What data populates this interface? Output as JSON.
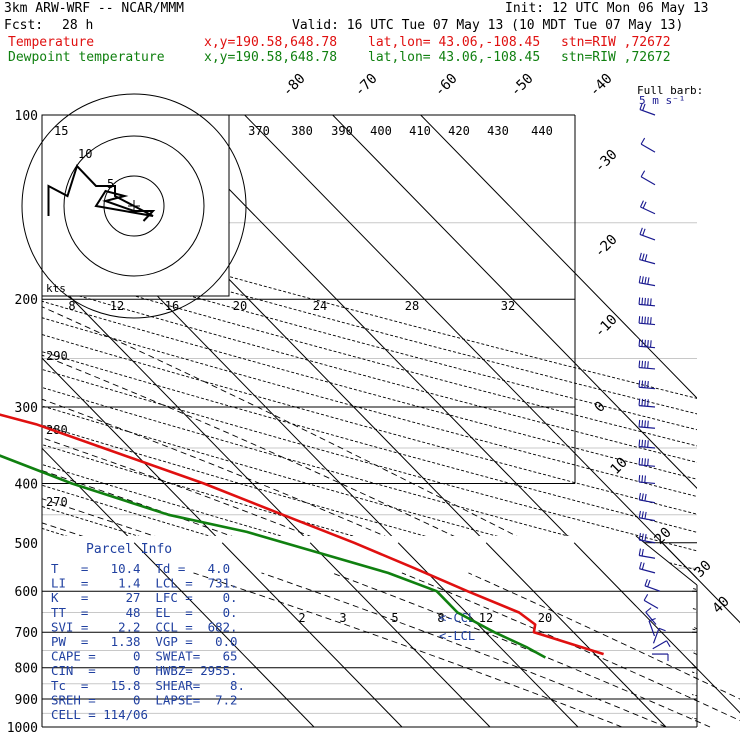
{
  "header": {
    "model": "3km ARW-WRF -- NCAR/MMM",
    "init": "Init: 12 UTC Mon 06 May 13",
    "fcst_label": "Fcst:",
    "fcst_value": "28 h",
    "valid": "Valid: 16 UTC Tue 07 May 13 (10 MDT Tue 07 May 13)",
    "temp_label": "Temperature",
    "dew_label": "Dewpoint temperature",
    "xy": "x,y=190.58,648.78",
    "latlon": "lat,lon= 43.06,-108.45",
    "stn": "stn=RIW ,72672"
  },
  "colors": {
    "temperature": "#e01010",
    "dewpoint": "#108010",
    "panel_text": "#2040a0",
    "barb": "#1a1a90",
    "grid": "#000000",
    "gray": "#c8c8c8"
  },
  "barb_key": {
    "title": "Full barb:",
    "value": "5 m s⁻¹"
  },
  "hodograph": {
    "rings": [
      "5",
      "10"
    ],
    "kts_label": "kts"
  },
  "parcel_info": {
    "title": "Parcel Info",
    "rows": [
      "T   =   10.4  Td =   4.0",
      "LI  =    1.4  LCL =  731.",
      "K   =     27  LFC =    0.",
      "TT  =     48  EL  =    0.",
      "SVI =    2.2  CCL =  682.",
      "PW  =   1.38  VGP =   0.0",
      "CAPE =     0  SWEAT=   65",
      "CIN  =     0  HWBZ= 2955.",
      "Tc  =   15.8  SHEAR=    8.",
      "SREH =     0  LAPSE=  7.2",
      "CELL = 114/06"
    ]
  },
  "chart_data": {
    "type": "skew-T",
    "y_axis": {
      "label": "pressure (hPa)",
      "scale": "log",
      "range": [
        1000,
        100
      ],
      "ticks": [
        100,
        200,
        300,
        400,
        500,
        600,
        700,
        800,
        900,
        1000
      ]
    },
    "isotherm_labels": [
      "-80",
      "-70",
      "-60",
      "-50",
      "-40",
      "-30",
      "-20",
      "-10",
      "0",
      "10",
      "20",
      "30",
      "40"
    ],
    "theta_labels": [
      "370",
      "380",
      "390",
      "400",
      "410",
      "420",
      "430",
      "440"
    ],
    "theta_left_labels": [
      "290",
      "280",
      "270"
    ],
    "mixing_ratio_labels": [
      "2",
      "3",
      "5",
      "8",
      "12",
      "20"
    ],
    "hodo_speed_labels": [
      "8",
      "12",
      "16",
      "20",
      "24",
      "28",
      "32"
    ],
    "lcl_markers": [
      "CCL",
      "LCL"
    ],
    "series": [
      {
        "name": "Temperature",
        "color": "#e01010",
        "points": [
          [
            760,
            11.0
          ],
          [
            700,
            5.5
          ],
          [
            680,
            6.5
          ],
          [
            650,
            6.0
          ],
          [
            600,
            2.5
          ],
          [
            550,
            -1.0
          ],
          [
            500,
            -5.0
          ],
          [
            450,
            -10.0
          ],
          [
            400,
            -15.5
          ],
          [
            350,
            -23.0
          ],
          [
            320,
            -28.0
          ],
          [
            300,
            -33.5
          ],
          [
            280,
            -39.5
          ],
          [
            260,
            -45.5
          ],
          [
            240,
            -49.5
          ],
          [
            220,
            -51.0
          ],
          [
            200,
            -53.0
          ],
          [
            180,
            -51.5
          ],
          [
            160,
            -51.5
          ],
          [
            150,
            -52.0
          ],
          [
            140,
            -51.0
          ],
          [
            130,
            -52.5
          ],
          [
            120,
            -54.5
          ],
          [
            110,
            -56.5
          ],
          [
            100,
            -58.0
          ]
        ]
      },
      {
        "name": "Dewpoint temperature",
        "color": "#108010",
        "points": [
          [
            770,
            4.0
          ],
          [
            740,
            3.0
          ],
          [
            700,
            1.0
          ],
          [
            650,
            -1.0
          ],
          [
            600,
            -1.0
          ],
          [
            560,
            -4.5
          ],
          [
            520,
            -10.0
          ],
          [
            480,
            -16.0
          ],
          [
            450,
            -23.0
          ],
          [
            400,
            -30.5
          ],
          [
            350,
            -37.0
          ],
          [
            300,
            -43.5
          ],
          [
            250,
            -52.0
          ],
          [
            200,
            -62.0
          ],
          [
            170,
            -68.0
          ],
          [
            150,
            -72.0
          ],
          [
            120,
            -77.0
          ],
          [
            100,
            -80.0
          ]
        ]
      }
    ],
    "wind_barbs": [
      {
        "p": 100,
        "spd_ms": 8,
        "dir": 290
      },
      {
        "p": 115,
        "spd_ms": 6,
        "dir": 300
      },
      {
        "p": 130,
        "spd_ms": 7,
        "dir": 300
      },
      {
        "p": 145,
        "spd_ms": 9,
        "dir": 295
      },
      {
        "p": 160,
        "spd_ms": 10,
        "dir": 290
      },
      {
        "p": 175,
        "spd_ms": 15,
        "dir": 285
      },
      {
        "p": 190,
        "spd_ms": 20,
        "dir": 280
      },
      {
        "p": 205,
        "spd_ms": 25,
        "dir": 275
      },
      {
        "p": 220,
        "spd_ms": 25,
        "dir": 275
      },
      {
        "p": 240,
        "spd_ms": 25,
        "dir": 275
      },
      {
        "p": 260,
        "spd_ms": 22,
        "dir": 275
      },
      {
        "p": 280,
        "spd_ms": 22,
        "dir": 275
      },
      {
        "p": 300,
        "spd_ms": 20,
        "dir": 275
      },
      {
        "p": 325,
        "spd_ms": 20,
        "dir": 275
      },
      {
        "p": 350,
        "spd_ms": 18,
        "dir": 275
      },
      {
        "p": 375,
        "spd_ms": 18,
        "dir": 275
      },
      {
        "p": 400,
        "spd_ms": 17,
        "dir": 275
      },
      {
        "p": 430,
        "spd_ms": 15,
        "dir": 280
      },
      {
        "p": 460,
        "spd_ms": 15,
        "dir": 280
      },
      {
        "p": 500,
        "spd_ms": 14,
        "dir": 280
      },
      {
        "p": 530,
        "spd_ms": 12,
        "dir": 280
      },
      {
        "p": 560,
        "spd_ms": 10,
        "dir": 285
      },
      {
        "p": 600,
        "spd_ms": 8,
        "dir": 290
      },
      {
        "p": 640,
        "spd_ms": 6,
        "dir": 300
      },
      {
        "p": 680,
        "spd_ms": 5,
        "dir": 320
      },
      {
        "p": 710,
        "spd_ms": 4,
        "dir": 340
      },
      {
        "p": 730,
        "spd_ms": 3,
        "dir": 20
      },
      {
        "p": 745,
        "spd_ms": 3,
        "dir": 60
      },
      {
        "p": 760,
        "spd_ms": 3,
        "dir": 90
      }
    ],
    "hodograph_trace": [
      [
        -9,
        -2
      ],
      [
        -9,
        4
      ],
      [
        -7,
        2
      ],
      [
        -6,
        8
      ],
      [
        -4,
        4
      ],
      [
        -2,
        4
      ],
      [
        -2,
        2
      ],
      [
        0,
        0
      ],
      [
        2,
        -2
      ],
      [
        -4,
        0
      ],
      [
        -3,
        3
      ],
      [
        -1,
        2
      ],
      [
        -3,
        1
      ],
      [
        0,
        -1
      ],
      [
        2,
        -1
      ],
      [
        1,
        -3
      ]
    ]
  }
}
